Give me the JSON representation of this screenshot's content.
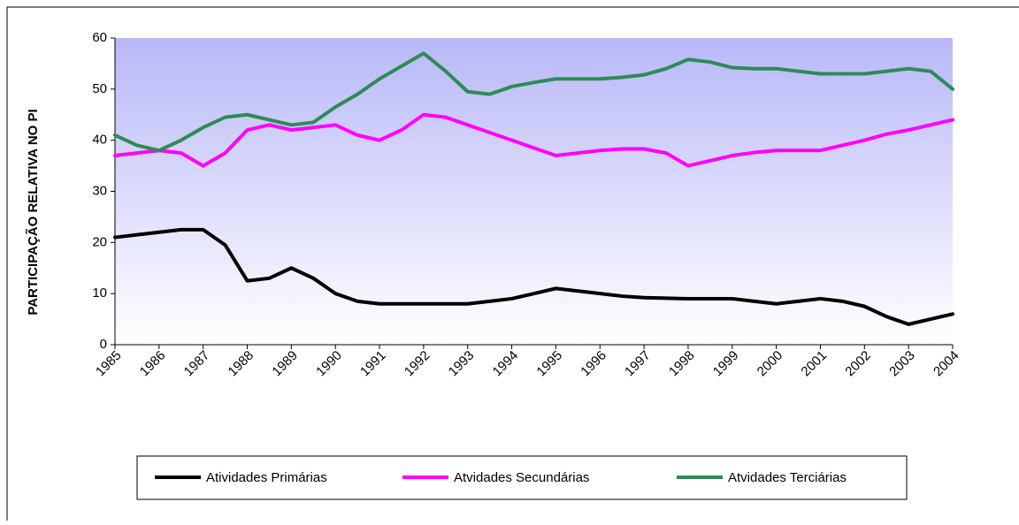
{
  "chart_data": {
    "type": "line",
    "y_label": "PARTICIPAÇÃO RELATIVA NO PI",
    "x": [
      1985,
      1985.5,
      1986,
      1986.5,
      1987,
      1987.5,
      1988,
      1988.5,
      1989,
      1989.5,
      1990,
      1990.5,
      1991,
      1991.5,
      1992,
      1992.5,
      1993,
      1993.5,
      1994,
      1994.5,
      1995,
      1995.5,
      1996,
      1996.5,
      1997,
      1997.5,
      1998,
      1998.5,
      1999,
      1999.5,
      2000,
      2000.5,
      2001,
      2001.5,
      2002,
      2002.5,
      2003,
      2003.5,
      2004
    ],
    "series": [
      {
        "name": "Atividades Primárias",
        "color": "#000000",
        "values": [
          21,
          21.5,
          22,
          22.5,
          22.5,
          19.5,
          12.5,
          13,
          15,
          13,
          10,
          8.5,
          8,
          8,
          8,
          8,
          8,
          8.5,
          9,
          10,
          11,
          10.5,
          10,
          9.5,
          9.2,
          9.1,
          9,
          9,
          9,
          8.5,
          8,
          8.5,
          9,
          8.5,
          7.5,
          5.5,
          4,
          5,
          6
        ]
      },
      {
        "name": "Atvidades Secundárias",
        "color": "#ff00ff",
        "values": [
          37,
          37.5,
          38,
          37.5,
          35,
          37.5,
          42,
          43,
          42,
          42.5,
          43,
          41,
          40,
          42,
          45,
          44.5,
          43,
          41.5,
          40,
          38.5,
          37,
          37.5,
          38,
          38.3,
          38.3,
          37.5,
          35,
          36,
          37,
          37.6,
          38,
          38,
          38,
          39,
          40,
          41.2,
          42,
          43,
          44
        ]
      },
      {
        "name": "Atvidades Terciárias",
        "color": "#2e8b57",
        "values": [
          41,
          39,
          38,
          40,
          42.5,
          44.5,
          45,
          44,
          43,
          43.5,
          46.5,
          49,
          52,
          54.5,
          57,
          53.5,
          49.5,
          49,
          50.5,
          51.3,
          52,
          52,
          52,
          52.3,
          52.8,
          54,
          55.8,
          55.3,
          54.2,
          54,
          54,
          53.5,
          53,
          53,
          53,
          53.5,
          54,
          53.5,
          50
        ]
      }
    ],
    "xlim": [
      1985,
      2004
    ],
    "xticks": [
      1985,
      1986,
      1987,
      1988,
      1989,
      1990,
      1991,
      1992,
      1993,
      1994,
      1995,
      1996,
      1997,
      1998,
      1999,
      2000,
      2001,
      2002,
      2003,
      2004
    ],
    "ylim": [
      0,
      60
    ],
    "yticks": [
      0,
      10,
      20,
      30,
      40,
      50,
      60
    ],
    "legend": "bottom"
  }
}
